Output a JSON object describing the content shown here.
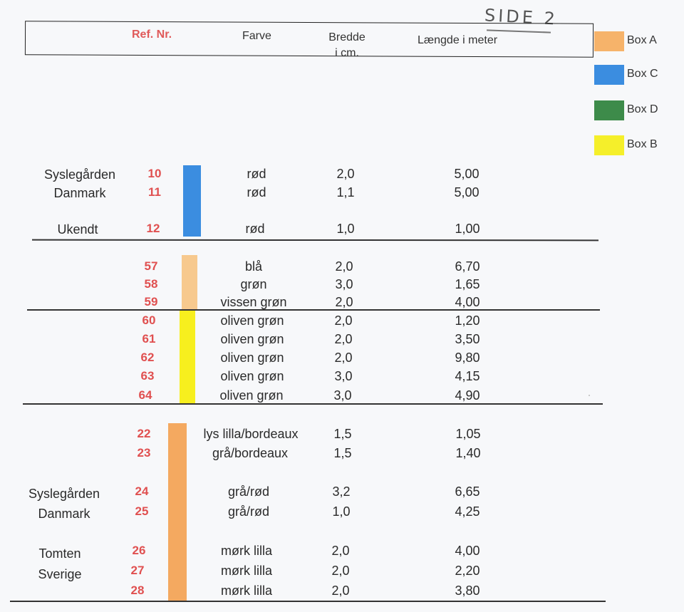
{
  "page_marker": "SIDE 2",
  "header": {
    "ref": "Ref. Nr.",
    "farve": "Farve",
    "bredde": [
      "Bredde",
      "i cm."
    ],
    "laengde": "Længde i meter"
  },
  "legend": [
    {
      "label": "Box  A",
      "color": "#f6b36a"
    },
    {
      "label": "Box C",
      "color": "#3b8de0"
    },
    {
      "label": "Box D",
      "color": "#3d8b4a"
    },
    {
      "label": "Box B",
      "color": "#f5ef2a"
    }
  ],
  "origins": [
    {
      "id": "o1",
      "lines": [
        "Syslegården",
        "Danmark"
      ]
    },
    {
      "id": "o2",
      "lines": [
        "Ukendt"
      ]
    },
    {
      "id": "o3",
      "lines": [
        "Syslegården",
        "Danmark"
      ]
    },
    {
      "id": "o4",
      "lines": [
        "Tomten",
        "Sverige"
      ]
    }
  ],
  "rows": [
    {
      "ref": "10",
      "farve": "rød",
      "bredde": "2,0",
      "laengde": "5,00"
    },
    {
      "ref": "11",
      "farve": "rød",
      "bredde": "1,1",
      "laengde": "5,00"
    },
    {
      "ref": "12",
      "farve": "rød",
      "bredde": "1,0",
      "laengde": "1,00"
    },
    {
      "ref": "57",
      "farve": "blå",
      "bredde": "2,0",
      "laengde": "6,70"
    },
    {
      "ref": "58",
      "farve": "grøn",
      "bredde": "3,0",
      "laengde": "1,65"
    },
    {
      "ref": "59",
      "farve": "vissen grøn",
      "bredde": "2,0",
      "laengde": "4,00"
    },
    {
      "ref": "60",
      "farve": "oliven grøn",
      "bredde": "2,0",
      "laengde": "1,20"
    },
    {
      "ref": "61",
      "farve": "oliven grøn",
      "bredde": "2,0",
      "laengde": "3,50"
    },
    {
      "ref": "62",
      "farve": "oliven grøn",
      "bredde": "2,0",
      "laengde": "9,80"
    },
    {
      "ref": "63",
      "farve": "oliven grøn",
      "bredde": "3,0",
      "laengde": "4,15"
    },
    {
      "ref": "64",
      "farve": "oliven grøn",
      "bredde": "3,0",
      "laengde": "4,90"
    },
    {
      "ref": "22",
      "farve": "lys lilla/bordeaux",
      "bredde": "1,5",
      "laengde": "1,05"
    },
    {
      "ref": "23",
      "farve": "grå/bordeaux",
      "bredde": "1,5",
      "laengde": "1,40"
    },
    {
      "ref": "24",
      "farve": "grå/rød",
      "bredde": "3,2",
      "laengde": "6,65"
    },
    {
      "ref": "25",
      "farve": "grå/rød",
      "bredde": "1,0",
      "laengde": "4,25"
    },
    {
      "ref": "26",
      "farve": "mørk lilla",
      "bredde": "2,0",
      "laengde": "4,00"
    },
    {
      "ref": "27",
      "farve": "mørk lilla",
      "bredde": "2,0",
      "laengde": "2,20"
    },
    {
      "ref": "28",
      "farve": "mørk lilla",
      "bredde": "2,0",
      "laengde": "3,80"
    }
  ],
  "bar_colors": {
    "c": "#3b8de0",
    "a_light": "#f7c98e",
    "b": "#f7ef1e",
    "a": "#f4a960"
  }
}
